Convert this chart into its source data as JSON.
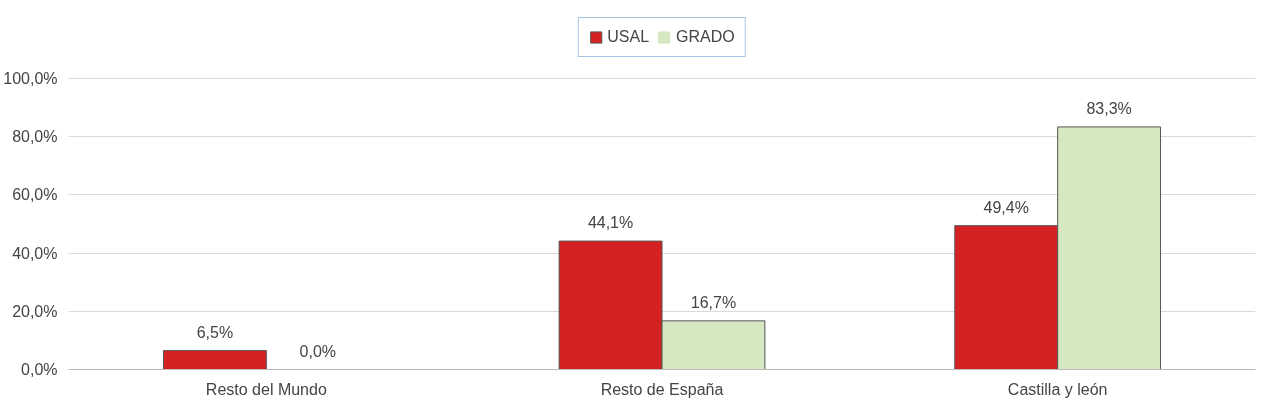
{
  "chart_data": {
    "type": "bar",
    "categories": [
      "Resto del Mundo",
      "Resto de España",
      "Castilla y león"
    ],
    "series": [
      {
        "name": "USAL",
        "color": "#d42222",
        "values": [
          6.5,
          44.1,
          49.4
        ],
        "value_labels": [
          "6,5%",
          "44,1%",
          "49,4%"
        ]
      },
      {
        "name": "GRADO",
        "color": "#d5e8c1",
        "values": [
          0.0,
          16.7,
          83.3
        ],
        "value_labels": [
          "0,0%",
          "16,7%",
          "83,3%"
        ]
      }
    ],
    "ylim": [
      0,
      100
    ],
    "yticks": [
      {
        "value": 0,
        "label": "0,0%"
      },
      {
        "value": 20,
        "label": "20,0%"
      },
      {
        "value": 40,
        "label": "40,0%"
      },
      {
        "value": 60,
        "label": "60,0%"
      },
      {
        "value": 80,
        "label": "80,0%"
      },
      {
        "value": 100,
        "label": "100,0%"
      }
    ],
    "grid": "y",
    "legend": "top"
  }
}
